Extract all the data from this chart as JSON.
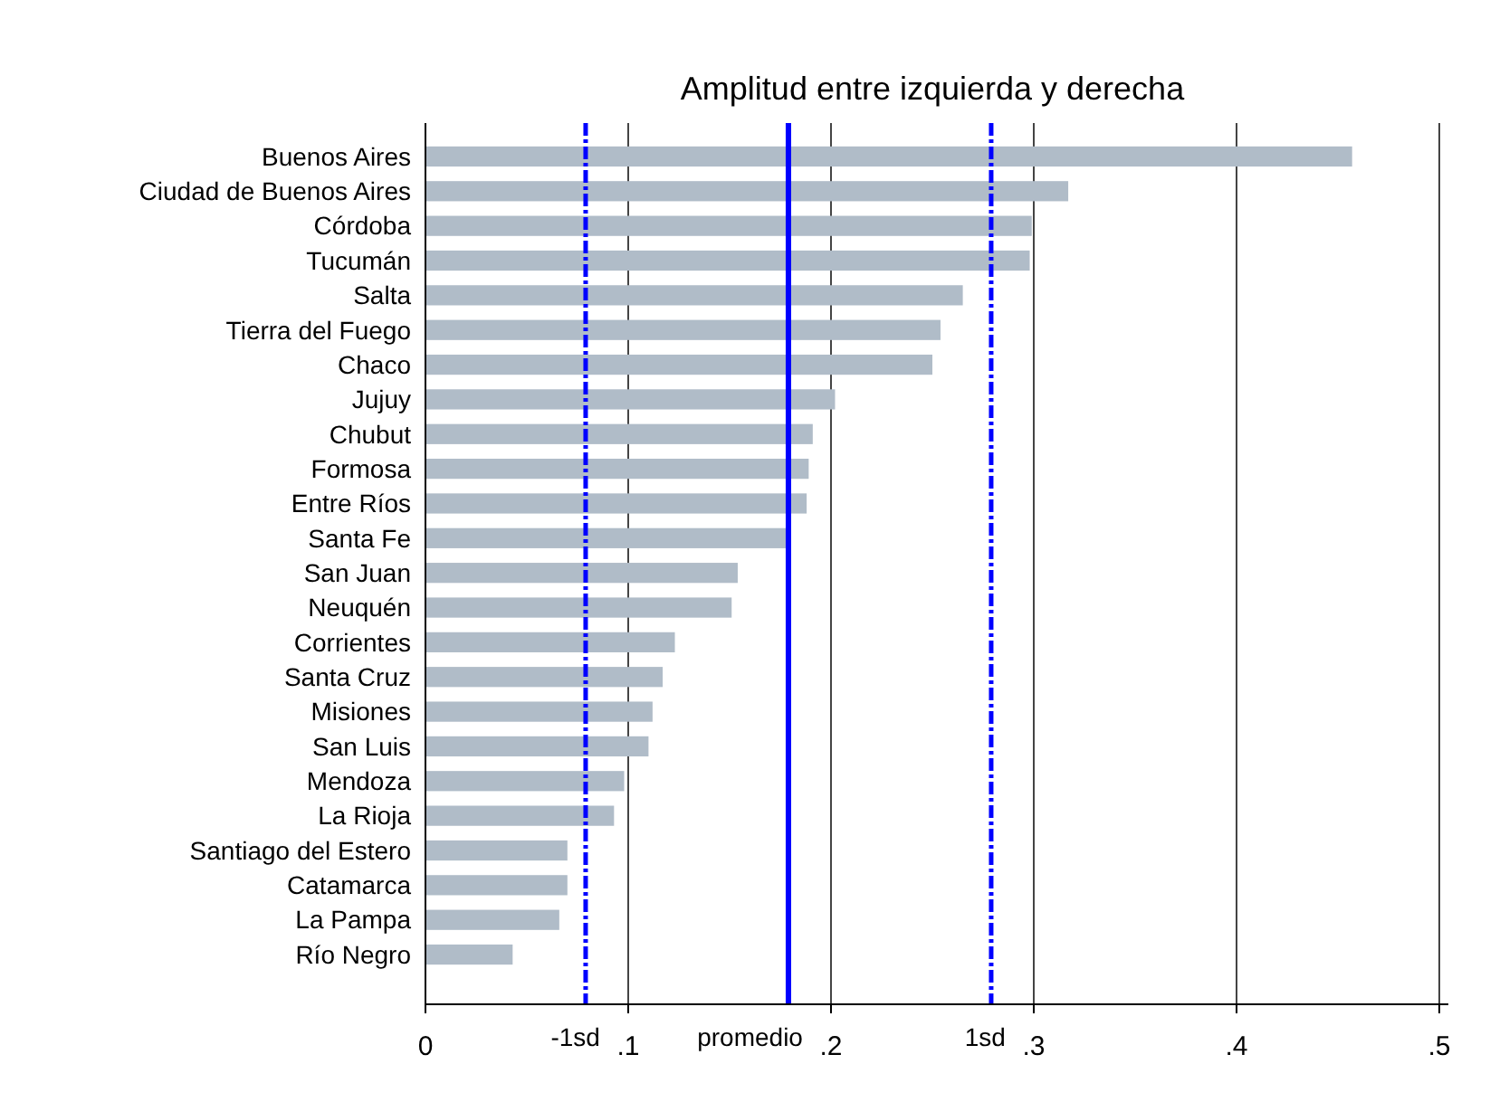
{
  "chart_data": {
    "type": "bar",
    "orientation": "horizontal",
    "title": "Amplitud entre izquierda y derecha",
    "categories": [
      "Buenos Aires",
      "Ciudad de Buenos Aires",
      "Córdoba",
      "Tucumán",
      "Salta",
      "Tierra del Fuego",
      "Chaco",
      "Jujuy",
      "Chubut",
      "Formosa",
      "Entre Ríos",
      "Santa Fe",
      "San Juan",
      "Neuquén",
      "Corrientes",
      "Santa Cruz",
      "Misiones",
      "San Luis",
      "Mendoza",
      "La Rioja",
      "Santiago del Estero",
      "Catamarca",
      "La Pampa",
      "Río Negro"
    ],
    "values": [
      0.457,
      0.317,
      0.299,
      0.298,
      0.265,
      0.254,
      0.25,
      0.202,
      0.191,
      0.189,
      0.188,
      0.178,
      0.154,
      0.151,
      0.123,
      0.117,
      0.112,
      0.11,
      0.098,
      0.093,
      0.07,
      0.07,
      0.066,
      0.043
    ],
    "color": "#b0bcc8",
    "xlim": [
      0,
      0.5
    ],
    "xticks": [
      0,
      {
        "value": 0.1,
        "label": ".1"
      },
      {
        "value": 0.2,
        "label": ".2"
      },
      {
        "value": 0.3,
        "label": ".3"
      },
      {
        "value": 0.4,
        "label": ".4"
      },
      {
        "value": 0.5,
        "label": ".5"
      }
    ],
    "grid": "x",
    "ref_lines": [
      {
        "axis": "x",
        "value": 0.079,
        "label": "-1sd",
        "color": "#0000ff",
        "line_style": "dashdot"
      },
      {
        "axis": "x",
        "value": 0.179,
        "label": "promedio",
        "color": "#0000ff",
        "line_style": "solid"
      },
      {
        "axis": "x",
        "value": 0.279,
        "label": "1sd",
        "color": "#0000ff",
        "line_style": "dashdot"
      }
    ]
  }
}
